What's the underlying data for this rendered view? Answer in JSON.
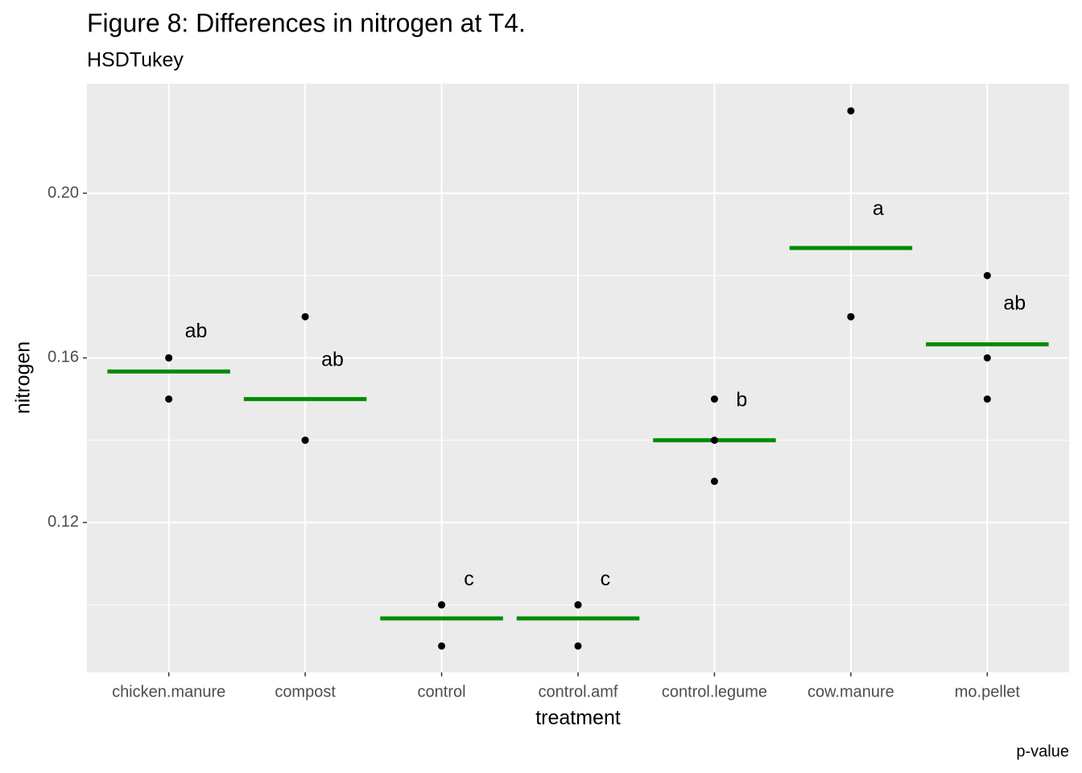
{
  "chart_data": {
    "type": "strip",
    "title": "Figure 8: Differences in nitrogen at T4.",
    "subtitle": "HSDTukey",
    "caption": "p-value",
    "x_label": "treatment",
    "y_label": "nitrogen",
    "categories": [
      "chicken.manure",
      "compost",
      "control",
      "control.amf",
      "control.legume",
      "cow.manure",
      "mo.pellet"
    ],
    "observations": [
      [
        0.16,
        0.16,
        0.15
      ],
      [
        0.17,
        0.14,
        0.14
      ],
      [
        0.1,
        0.1,
        0.09
      ],
      [
        0.1,
        0.1,
        0.09
      ],
      [
        0.15,
        0.14,
        0.13
      ],
      [
        0.22,
        0.17,
        0.17
      ],
      [
        0.18,
        0.16,
        0.15
      ]
    ],
    "point_color": "#000000",
    "means": [
      0.1567,
      0.15,
      0.0967,
      0.0967,
      0.14,
      0.1867,
      0.1633
    ],
    "mean_color": "#008b00",
    "letters": [
      {
        "label": "ab",
        "y": 0.1663
      },
      {
        "label": "ab",
        "y": 0.1593
      },
      {
        "label": "c",
        "y": 0.106
      },
      {
        "label": "c",
        "y": 0.106
      },
      {
        "label": "b",
        "y": 0.1495
      },
      {
        "label": "a",
        "y": 0.196
      },
      {
        "label": "ab",
        "y": 0.173
      }
    ],
    "ylim": [
      0.0836,
      0.2266
    ],
    "yticks": [
      {
        "value": 0.12,
        "label": "0.12"
      },
      {
        "value": 0.16,
        "label": "0.16"
      },
      {
        "value": 0.2,
        "label": "0.20"
      }
    ],
    "y_minor_grid": [
      0.1,
      0.14,
      0.18
    ],
    "grid": true
  }
}
